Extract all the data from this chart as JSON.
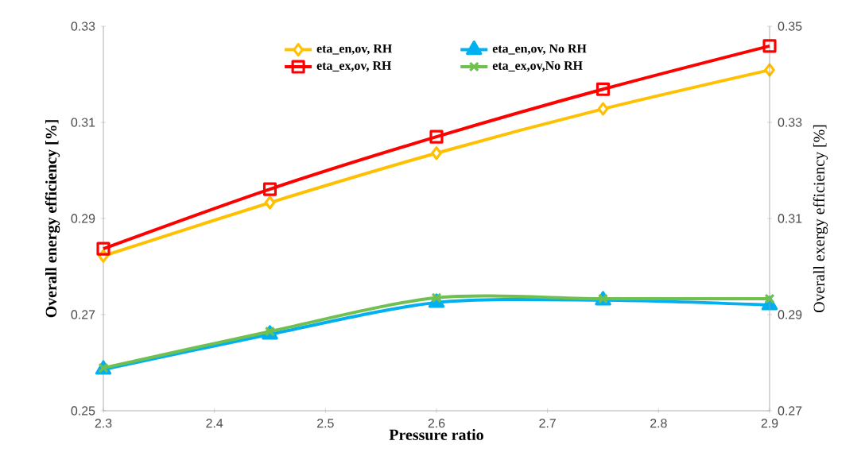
{
  "chart_data": {
    "type": "line",
    "xlabel": "Pressure ratio",
    "ylabel": "Overall energy efficiency [%]",
    "y2label": "Overall exergy efficiency [%]",
    "x": [
      2.3,
      2.45,
      2.6,
      2.75,
      2.9
    ],
    "series": [
      {
        "name": "eta_en,ov, RH",
        "color": "#ffc000",
        "marker": "diamond",
        "axis": "y",
        "values": [
          0.2822,
          0.2933,
          0.3036,
          0.3128,
          0.3209
        ]
      },
      {
        "name": "eta_en,ov, No RH",
        "color": "#00b0f0",
        "marker": "triangle",
        "axis": "y",
        "values": [
          0.2586,
          0.2659,
          0.2725,
          0.273,
          0.272
        ]
      },
      {
        "name": "eta_ex,ov, RH",
        "color": "#ff0000",
        "marker": "square",
        "axis": "y2",
        "values": [
          0.3037,
          0.3161,
          0.327,
          0.3369,
          0.3459
        ]
      },
      {
        "name": "eta_ex,ov,No RH",
        "color": "#70c050",
        "marker": "cross",
        "axis": "y2",
        "values": [
          0.2789,
          0.2865,
          0.2935,
          0.2933,
          0.2933
        ]
      }
    ],
    "xlim": [
      2.3,
      2.9
    ],
    "xticks": [
      2.3,
      2.4,
      2.5,
      2.6,
      2.7,
      2.8,
      2.9
    ],
    "ylim": [
      0.25,
      0.33
    ],
    "yticks": [
      0.25,
      0.27,
      0.29,
      0.31,
      0.33
    ],
    "y2lim": [
      0.27,
      0.35
    ],
    "y2ticks": [
      0.27,
      0.29,
      0.31,
      0.33,
      0.35
    ],
    "legend": "top",
    "grid": false,
    "line_style": "solid"
  }
}
